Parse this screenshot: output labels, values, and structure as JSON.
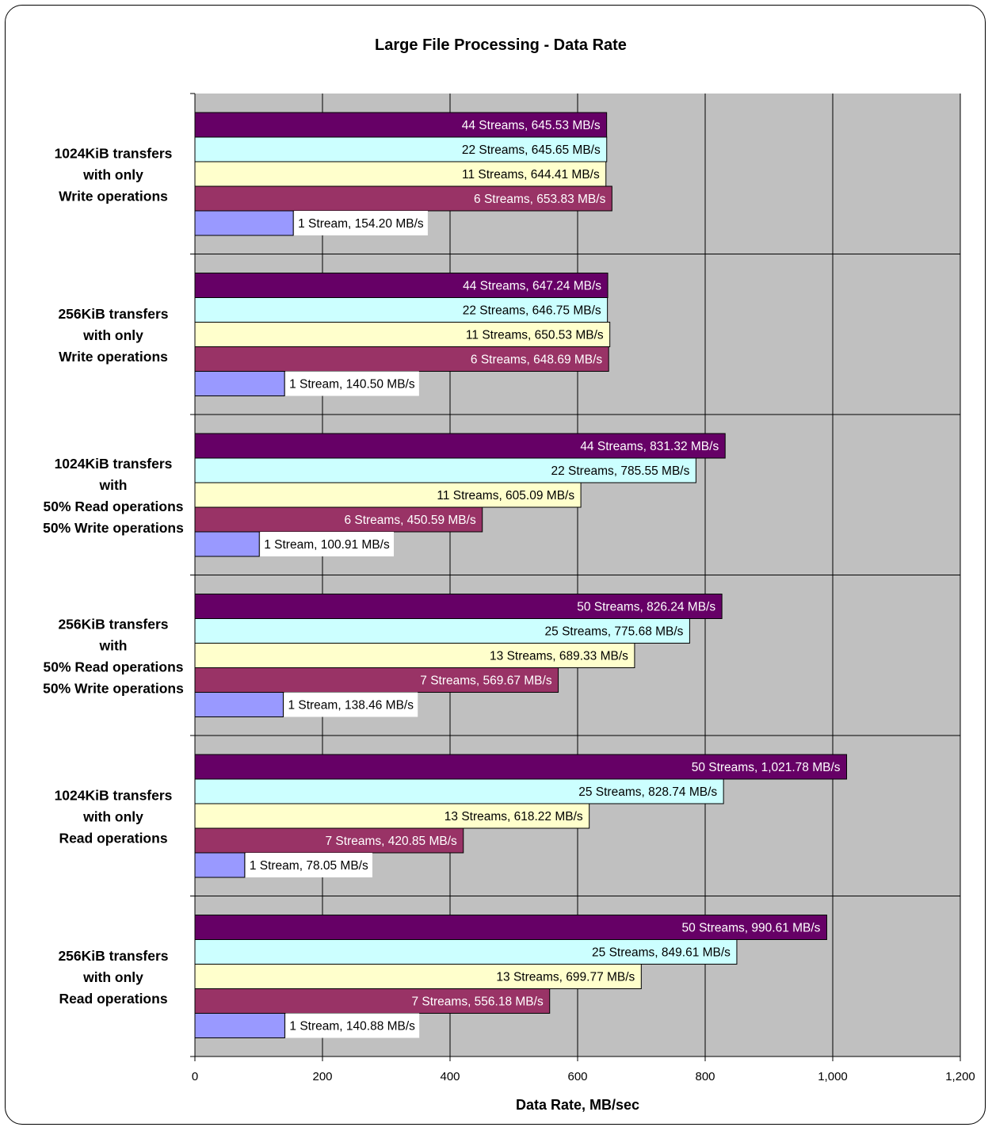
{
  "chart_data": {
    "type": "bar",
    "orientation": "horizontal",
    "title": "Large File Processing - Data Rate",
    "xlabel": "Data Rate, MB/sec",
    "ylabel": "",
    "xlim": [
      0,
      1200
    ],
    "xticks": [
      0,
      200,
      400,
      600,
      800,
      1000,
      1200
    ],
    "tick_labels": [
      "0",
      "200",
      "400",
      "600",
      "800",
      "1,000",
      "1,200"
    ],
    "grid": true,
    "plot_background": "#c0c0c0",
    "bar_colors": [
      "#660066",
      "#ccffff",
      "#ffffcc",
      "#993366",
      "#9999ff"
    ],
    "label_colors": [
      "#ffffff",
      "#000000",
      "#000000",
      "#ffffff",
      "#000000"
    ],
    "groups": [
      {
        "label_lines": [
          "1024KiB transfers",
          "with only",
          "Write operations"
        ],
        "bars": [
          {
            "value": 645.53,
            "label": "44 Streams, 645.53  MB/s"
          },
          {
            "value": 645.65,
            "label": "22 Streams, 645.65  MB/s"
          },
          {
            "value": 644.41,
            "label": "11 Streams, 644.41  MB/s"
          },
          {
            "value": 653.83,
            "label": "6 Streams, 653.83  MB/s"
          },
          {
            "value": 154.2,
            "label": "1 Stream, 154.20  MB/s"
          }
        ]
      },
      {
        "label_lines": [
          "256KiB transfers",
          "with only",
          "Write operations"
        ],
        "bars": [
          {
            "value": 647.24,
            "label": "44 Streams, 647.24  MB/s"
          },
          {
            "value": 646.75,
            "label": "22 Streams, 646.75  MB/s"
          },
          {
            "value": 650.53,
            "label": "11 Streams, 650.53  MB/s"
          },
          {
            "value": 648.69,
            "label": "6 Streams, 648.69  MB/s"
          },
          {
            "value": 140.5,
            "label": "1 Stream, 140.50  MB/s"
          }
        ]
      },
      {
        "label_lines": [
          "1024KiB transfers",
          "with",
          "50% Read operations",
          "50% Write operations"
        ],
        "bars": [
          {
            "value": 831.32,
            "label": "44 Streams, 831.32  MB/s"
          },
          {
            "value": 785.55,
            "label": "22 Streams, 785.55  MB/s"
          },
          {
            "value": 605.09,
            "label": "11 Streams, 605.09  MB/s"
          },
          {
            "value": 450.59,
            "label": "6 Streams, 450.59  MB/s"
          },
          {
            "value": 100.91,
            "label": "1 Stream, 100.91  MB/s"
          }
        ]
      },
      {
        "label_lines": [
          "256KiB transfers",
          "with",
          "50% Read operations",
          "50% Write operations"
        ],
        "bars": [
          {
            "value": 826.24,
            "label": "50 Streams, 826.24  MB/s"
          },
          {
            "value": 775.68,
            "label": "25 Streams, 775.68  MB/s"
          },
          {
            "value": 689.33,
            "label": "13 Streams, 689.33  MB/s"
          },
          {
            "value": 569.67,
            "label": "7 Streams, 569.67  MB/s"
          },
          {
            "value": 138.46,
            "label": "1 Stream, 138.46  MB/s"
          }
        ]
      },
      {
        "label_lines": [
          "1024KiB transfers",
          "with only",
          "Read operations"
        ],
        "bars": [
          {
            "value": 1021.78,
            "label": "50 Streams, 1,021.78  MB/s"
          },
          {
            "value": 828.74,
            "label": "25 Streams, 828.74  MB/s"
          },
          {
            "value": 618.22,
            "label": "13 Streams, 618.22  MB/s"
          },
          {
            "value": 420.85,
            "label": "7 Streams, 420.85  MB/s"
          },
          {
            "value": 78.05,
            "label": "1 Stream, 78.05  MB/s"
          }
        ]
      },
      {
        "label_lines": [
          "256KiB transfers",
          "with only",
          "Read operations"
        ],
        "bars": [
          {
            "value": 990.61,
            "label": "50 Streams, 990.61  MB/s"
          },
          {
            "value": 849.61,
            "label": "25 Streams, 849.61  MB/s"
          },
          {
            "value": 699.77,
            "label": "13 Streams, 699.77  MB/s"
          },
          {
            "value": 556.18,
            "label": "7 Streams, 556.18  MB/s"
          },
          {
            "value": 140.88,
            "label": "1 Stream, 140.88  MB/s"
          }
        ]
      }
    ]
  }
}
